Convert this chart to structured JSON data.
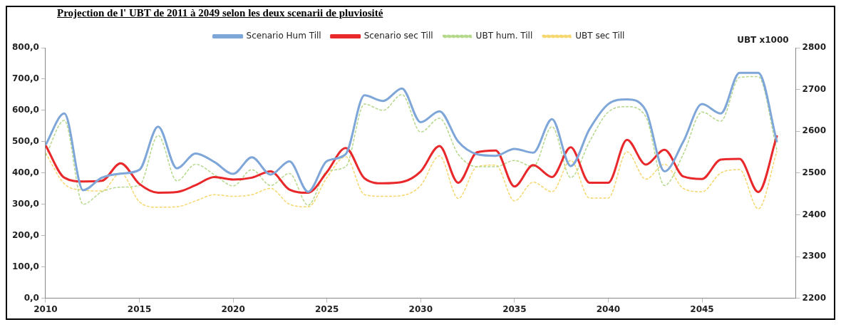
{
  "chart_data": {
    "type": "line",
    "title": "Projection de l' UBT de 2011 à 2049 selon les deux scenarii de pluviosité",
    "y2label": "UBT x1000",
    "x": [
      2010,
      2011,
      2012,
      2013,
      2014,
      2015,
      2016,
      2017,
      2018,
      2019,
      2020,
      2021,
      2022,
      2023,
      2024,
      2025,
      2026,
      2027,
      2028,
      2029,
      2030,
      2031,
      2032,
      2033,
      2034,
      2035,
      2036,
      2037,
      2038,
      2039,
      2040,
      2041,
      2042,
      2043,
      2044,
      2045,
      2046,
      2047,
      2048,
      2049
    ],
    "series": [
      {
        "name": "Scenario Hum Till",
        "color": "#7ea6d8",
        "line_style": "solid",
        "values": [
          490,
          590,
          345,
          385,
          398,
          410,
          548,
          415,
          462,
          435,
          397,
          450,
          395,
          437,
          340,
          438,
          460,
          648,
          630,
          670,
          562,
          597,
          500,
          460,
          455,
          477,
          465,
          572,
          422,
          540,
          620,
          635,
          600,
          405,
          500,
          620,
          590,
          720,
          720,
          498
        ]
      },
      {
        "name": "Scenario sec Till",
        "color": "#e8282a",
        "line_style": "solid",
        "values": [
          488,
          385,
          373,
          375,
          431,
          365,
          337,
          339,
          361,
          387,
          379,
          385,
          405,
          347,
          337,
          403,
          480,
          383,
          367,
          371,
          405,
          486,
          369,
          466,
          472,
          357,
          425,
          387,
          482,
          369,
          369,
          506,
          427,
          474,
          389,
          381,
          443,
          445,
          339,
          520
        ]
      },
      {
        "name": "UBT hum. Till",
        "color": "#b5d88a",
        "line_style": "dashed",
        "axis": "y2",
        "values": [
          2541,
          2626,
          2425,
          2455,
          2466,
          2470,
          2590,
          2481,
          2521,
          2496,
          2469,
          2508,
          2470,
          2499,
          2423,
          2504,
          2515,
          2665,
          2650,
          2688,
          2598,
          2631,
          2545,
          2515,
          2515,
          2530,
          2515,
          2611,
          2489,
          2575,
          2646,
          2659,
          2635,
          2470,
          2545,
          2646,
          2624,
          2729,
          2731,
          2553
        ]
      },
      {
        "name": "UBT sec Till",
        "color": "#f5d76e",
        "line_style": "dashed",
        "axis": "y2",
        "values": [
          2548,
          2474,
          2459,
          2457,
          2500,
          2431,
          2418,
          2419,
          2433,
          2448,
          2444,
          2448,
          2463,
          2425,
          2419,
          2489,
          2539,
          2448,
          2444,
          2446,
          2470,
          2541,
          2439,
          2515,
          2519,
          2433,
          2478,
          2455,
          2530,
          2440,
          2440,
          2551,
          2485,
          2521,
          2463,
          2455,
          2500,
          2508,
          2414,
          2553
        ]
      }
    ],
    "xlim": [
      2010,
      2050
    ],
    "xticks": [
      2010,
      2015,
      2020,
      2025,
      2030,
      2035,
      2040,
      2045
    ],
    "ylim": [
      0,
      800
    ],
    "yticks": [
      {
        "value": 0,
        "label": "0,0"
      },
      {
        "value": 100,
        "label": "100,0"
      },
      {
        "value": 200,
        "label": "200,0"
      },
      {
        "value": 300,
        "label": "300,0"
      },
      {
        "value": 400,
        "label": "400,0"
      },
      {
        "value": 500,
        "label": "500,0"
      },
      {
        "value": 600,
        "label": "600,0"
      },
      {
        "value": 700,
        "label": "700,0"
      },
      {
        "value": 800,
        "label": "800,0"
      }
    ],
    "y2lim": [
      2200,
      2800
    ],
    "y2ticks": [
      2200,
      2300,
      2400,
      2500,
      2600,
      2700,
      2800
    ],
    "grid": false,
    "legend": "top",
    "marker": "none"
  }
}
